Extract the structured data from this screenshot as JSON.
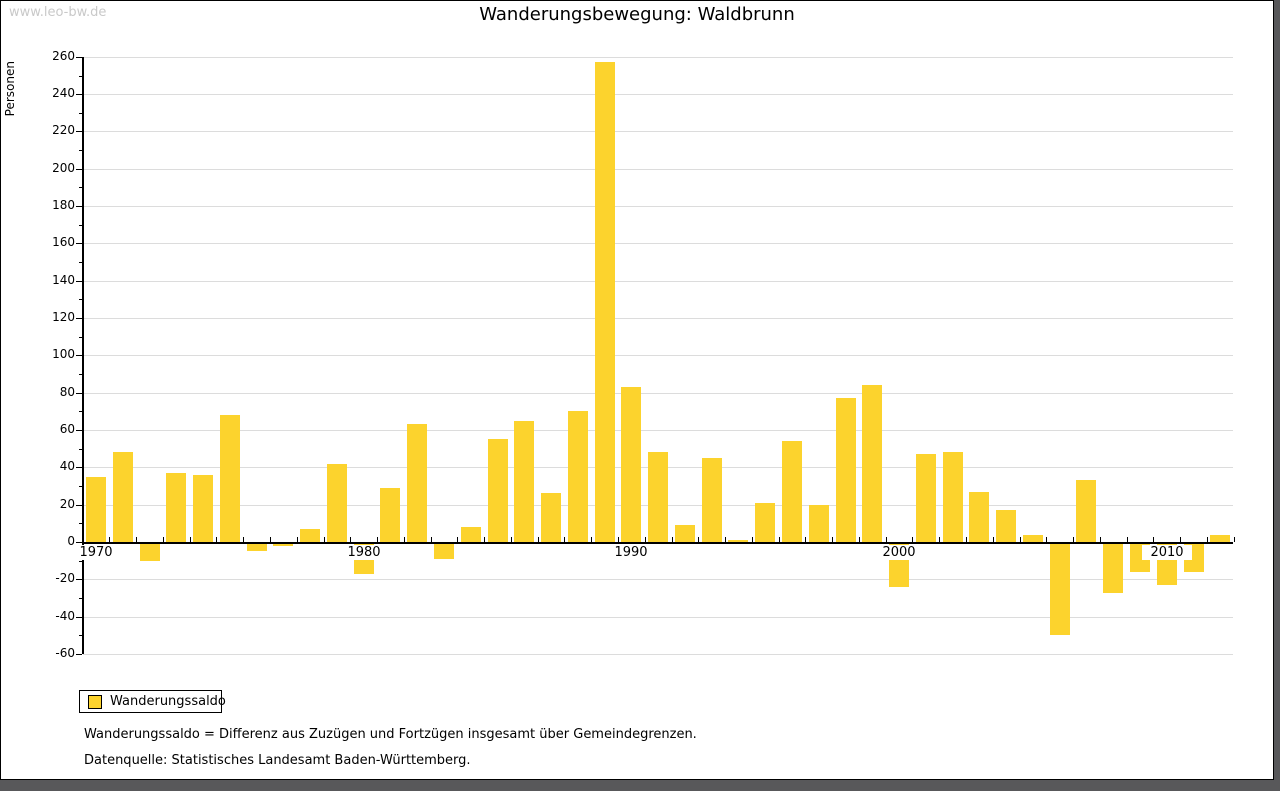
{
  "watermark": "www.leo-bw.de",
  "title": "Wanderungsbewegung: Waldbrunn",
  "y_axis_label": "Personen",
  "legend": {
    "label": "Wanderungssaldo",
    "swatch_color": "#fcd32d"
  },
  "footnotes": [
    "Wanderungssaldo = Differenz aus Zuzügen und Fortzügen insgesamt über Gemeindegrenzen.",
    "Datenquelle: Statistisches Landesamt Baden-Württemberg."
  ],
  "colors": {
    "bar": "#fcd32d",
    "gridline": "#dcdcdc",
    "axis": "#000000",
    "watermark": "#c9c9c9",
    "frame_shadow": "#58585a",
    "background": "#ffffff"
  },
  "chart_data": {
    "type": "bar",
    "title": "Wanderungsbewegung: Waldbrunn",
    "xlabel": "",
    "ylabel": "Personen",
    "ylim": [
      -60,
      260
    ],
    "ytick_step": 20,
    "ytick_minor_step": 10,
    "grid": true,
    "legend_position": "bottom-left",
    "xtick_labels": [
      "1970",
      "1980",
      "1990",
      "2000",
      "2010"
    ],
    "categories": [
      1970,
      1971,
      1972,
      1973,
      1974,
      1975,
      1976,
      1977,
      1978,
      1979,
      1980,
      1981,
      1982,
      1983,
      1984,
      1985,
      1986,
      1987,
      1988,
      1989,
      1990,
      1991,
      1992,
      1993,
      1994,
      1995,
      1996,
      1997,
      1998,
      1999,
      2000,
      2001,
      2002,
      2003,
      2004,
      2005,
      2006,
      2007,
      2008,
      2009,
      2010,
      2011,
      2012
    ],
    "series": [
      {
        "name": "Wanderungssaldo",
        "values": [
          35,
          48,
          -9,
          37,
          36,
          68,
          -4,
          -1,
          7,
          42,
          -16,
          29,
          63,
          -8,
          8,
          55,
          65,
          26,
          70,
          257,
          83,
          48,
          9,
          45,
          1,
          21,
          54,
          20,
          77,
          84,
          -23,
          47,
          48,
          27,
          17,
          4,
          -49,
          33,
          -26,
          -15,
          -22,
          -15,
          4
        ]
      }
    ]
  }
}
